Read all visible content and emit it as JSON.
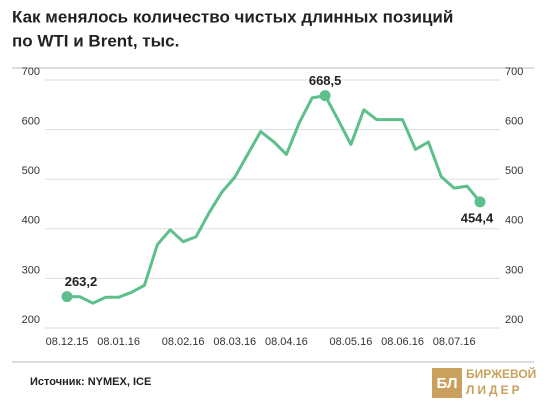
{
  "chart_data": {
    "type": "line",
    "title": [
      "Как менялось количество чистых длинных позиций",
      "по WTI и Brent, тыс."
    ],
    "categories": [
      "08.12.15",
      null,
      null,
      null,
      "08.01.16",
      null,
      null,
      null,
      null,
      "08.02.16",
      null,
      null,
      null,
      "08.03.16",
      null,
      null,
      null,
      "08.04.16",
      null,
      null,
      null,
      null,
      "08.05.16",
      null,
      null,
      null,
      "08.06.16",
      null,
      null,
      null,
      "08.07.16",
      null,
      null
    ],
    "series": [
      {
        "color": "#5cbf8c",
        "values": [
          263.2,
          263,
          250,
          262,
          262,
          272,
          286,
          368,
          398,
          374,
          384,
          432,
          474,
          504,
          550,
          596,
          576,
          550,
          614,
          664,
          668.5,
          620,
          570,
          640,
          620,
          620,
          620,
          560,
          575,
          505,
          482,
          486,
          454.4
        ],
        "value_labels": [
          "263,2",
          null,
          null,
          null,
          null,
          null,
          null,
          null,
          null,
          null,
          null,
          null,
          null,
          null,
          null,
          null,
          null,
          null,
          null,
          null,
          "668,5",
          null,
          null,
          null,
          null,
          null,
          null,
          null,
          null,
          null,
          null,
          null,
          "454,4"
        ]
      }
    ],
    "ylim": [
      200,
      700
    ],
    "yticks": [
      200,
      300,
      400,
      500,
      600,
      700
    ],
    "y2lim": [
      200,
      700
    ],
    "y2ticks": [
      200,
      300,
      400,
      500,
      600,
      700
    ],
    "grid": true,
    "source": "Источник: NYMEX, ICE",
    "logo": {
      "mark": "БЛ",
      "lines": [
        "БИРЖЕВОЙ",
        "ЛИДЕР"
      ]
    }
  }
}
